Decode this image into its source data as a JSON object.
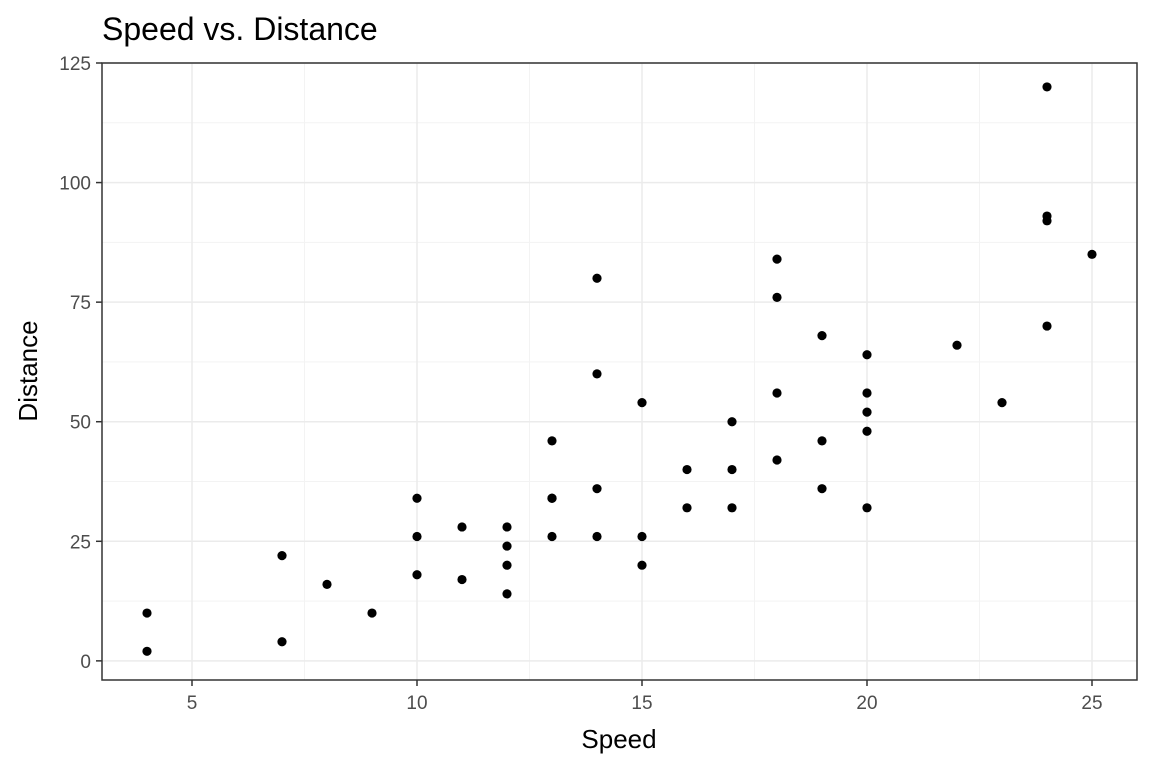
{
  "chart_data": {
    "type": "scatter",
    "title": "Speed vs. Distance",
    "xlabel": "Speed",
    "ylabel": "Distance",
    "xlim": [
      3,
      26
    ],
    "ylim": [
      -4,
      125
    ],
    "xticks": [
      5,
      10,
      15,
      20,
      25
    ],
    "yticks": [
      0,
      25,
      50,
      75,
      100,
      125
    ],
    "grid": true,
    "points": [
      {
        "x": 4,
        "y": 2
      },
      {
        "x": 4,
        "y": 10
      },
      {
        "x": 7,
        "y": 4
      },
      {
        "x": 7,
        "y": 22
      },
      {
        "x": 8,
        "y": 16
      },
      {
        "x": 9,
        "y": 10
      },
      {
        "x": 10,
        "y": 18
      },
      {
        "x": 10,
        "y": 26
      },
      {
        "x": 10,
        "y": 34
      },
      {
        "x": 11,
        "y": 17
      },
      {
        "x": 11,
        "y": 28
      },
      {
        "x": 12,
        "y": 14
      },
      {
        "x": 12,
        "y": 20
      },
      {
        "x": 12,
        "y": 24
      },
      {
        "x": 12,
        "y": 28
      },
      {
        "x": 13,
        "y": 26
      },
      {
        "x": 13,
        "y": 34
      },
      {
        "x": 13,
        "y": 34
      },
      {
        "x": 13,
        "y": 46
      },
      {
        "x": 14,
        "y": 26
      },
      {
        "x": 14,
        "y": 36
      },
      {
        "x": 14,
        "y": 60
      },
      {
        "x": 14,
        "y": 80
      },
      {
        "x": 15,
        "y": 20
      },
      {
        "x": 15,
        "y": 26
      },
      {
        "x": 15,
        "y": 54
      },
      {
        "x": 16,
        "y": 32
      },
      {
        "x": 16,
        "y": 40
      },
      {
        "x": 17,
        "y": 32
      },
      {
        "x": 17,
        "y": 40
      },
      {
        "x": 17,
        "y": 50
      },
      {
        "x": 18,
        "y": 42
      },
      {
        "x": 18,
        "y": 56
      },
      {
        "x": 18,
        "y": 76
      },
      {
        "x": 18,
        "y": 84
      },
      {
        "x": 19,
        "y": 36
      },
      {
        "x": 19,
        "y": 46
      },
      {
        "x": 19,
        "y": 68
      },
      {
        "x": 20,
        "y": 32
      },
      {
        "x": 20,
        "y": 48
      },
      {
        "x": 20,
        "y": 52
      },
      {
        "x": 20,
        "y": 56
      },
      {
        "x": 20,
        "y": 64
      },
      {
        "x": 22,
        "y": 66
      },
      {
        "x": 23,
        "y": 54
      },
      {
        "x": 24,
        "y": 70
      },
      {
        "x": 24,
        "y": 92
      },
      {
        "x": 24,
        "y": 93
      },
      {
        "x": 24,
        "y": 120
      },
      {
        "x": 25,
        "y": 85
      }
    ],
    "colors": {
      "point": "#000000",
      "grid_major": "#ebebeb",
      "grid_minor": "#f3f3f3",
      "panel_border": "#333333",
      "tick_text": "#4d4d4d"
    }
  }
}
